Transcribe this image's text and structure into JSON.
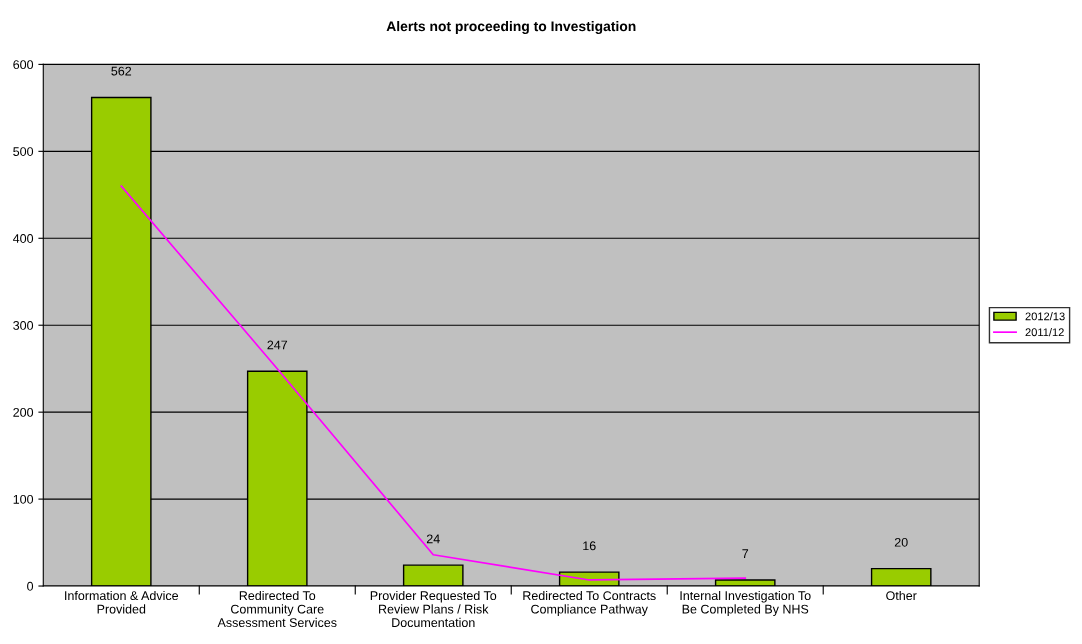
{
  "chart_data": {
    "type": "bar",
    "title": "Alerts not proceeding to Investigation",
    "categories": [
      "Information & Advice\nProvided",
      "Redirected To\nCommunity Care\nAssessment Services",
      "Provider Requested To\nReview Plans / Risk\nDocumentation",
      "Redirected To Contracts\nCompliance Pathway",
      "Internal Investigation To\nBe Completed By NHS",
      "Other"
    ],
    "series": [
      {
        "name": "2012/13",
        "color": "#99cc00",
        "values": [
          562,
          247,
          24,
          16,
          7,
          20
        ],
        "data_labels": true
      },
      {
        "name": "2011/12",
        "type": "line",
        "color": "#ff00ff",
        "values": [
          460,
          250,
          36,
          7,
          9,
          null
        ]
      }
    ],
    "ylim": [
      0,
      600
    ],
    "yticks": [
      0,
      100,
      200,
      300,
      400,
      500,
      600
    ],
    "grid": "y",
    "legend": "right",
    "marker": "none"
  }
}
